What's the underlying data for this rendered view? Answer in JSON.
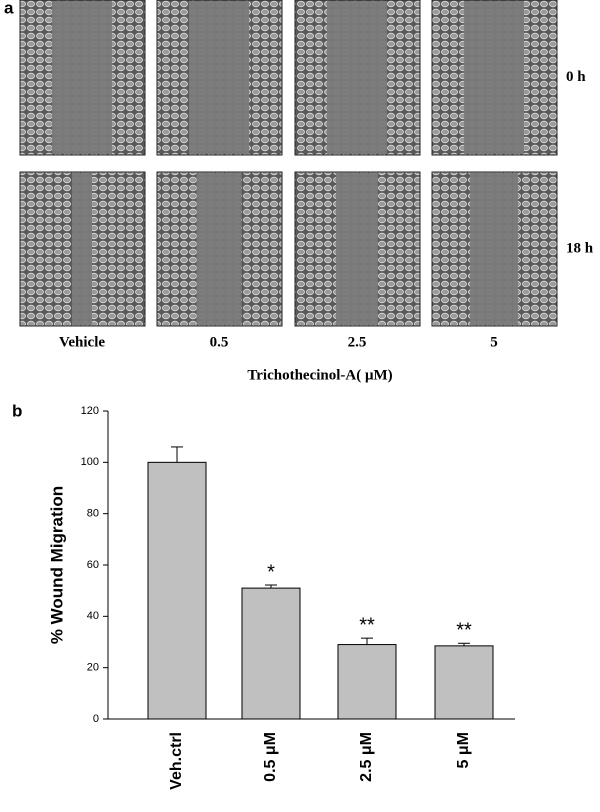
{
  "panel_a": {
    "label": "a",
    "rows": [
      "0 h",
      "18 h"
    ],
    "columns": [
      "Vehicle",
      "0.5",
      "2.5",
      "5"
    ],
    "axis_label": "Trichothecinol-A( μM)"
  },
  "chart_data": {
    "type": "bar",
    "panel_label": "b",
    "y_label": "% Wound Migration",
    "categories": [
      "Veh.ctrl",
      "0.5 μM",
      "2.5 μM",
      "5 μM"
    ],
    "values": [
      100,
      51,
      29,
      28.5
    ],
    "errors": [
      6,
      1.2,
      2.5,
      1
    ],
    "annotations": [
      null,
      "*",
      "**",
      "**"
    ],
    "color": "#c0c0c0",
    "ylim": [
      0,
      120
    ],
    "yticks": [
      0,
      20,
      40,
      60,
      80,
      100,
      120
    ]
  }
}
